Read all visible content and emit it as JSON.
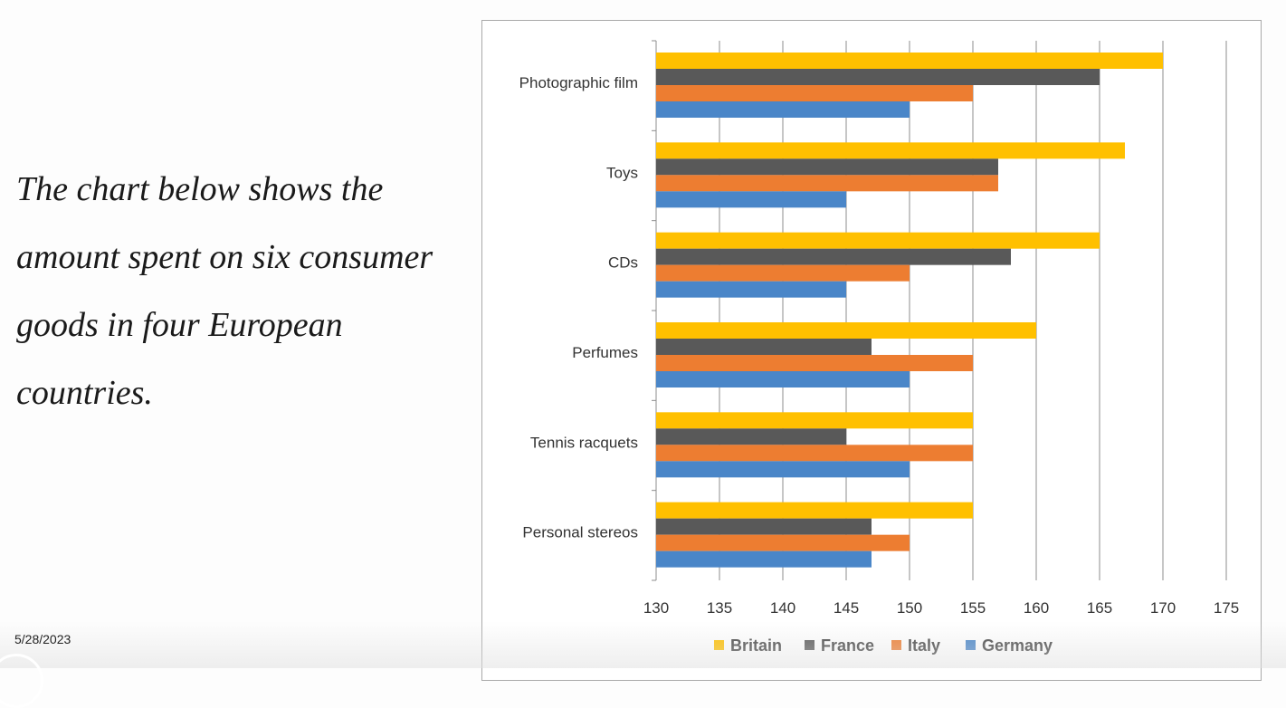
{
  "slide": {
    "intro_text": "The chart below shows the amount spent on six consumer goods in four European countries.",
    "date": "5/28/2023"
  },
  "chart_data": {
    "type": "bar",
    "orientation": "horizontal",
    "title": "",
    "xlabel": "",
    "ylabel": "",
    "categories": [
      "Photographic film",
      "Toys",
      "CDs",
      "Perfumes",
      "Tennis racquets",
      "Personal stereos"
    ],
    "series": [
      {
        "name": "Britain",
        "color": "#ffc000",
        "values": [
          170,
          167,
          165,
          160,
          155,
          155
        ]
      },
      {
        "name": "France",
        "color": "#595959",
        "values": [
          165,
          157,
          158,
          147,
          145,
          147
        ]
      },
      {
        "name": "Italy",
        "color": "#ed7d31",
        "values": [
          155,
          157,
          150,
          155,
          155,
          150
        ]
      },
      {
        "name": "Germany",
        "color": "#4a86c8",
        "values": [
          150,
          145,
          145,
          150,
          150,
          147
        ]
      }
    ],
    "xlim": [
      130,
      175
    ],
    "xticks": [
      130,
      135,
      140,
      145,
      150,
      155,
      160,
      165,
      170,
      175
    ],
    "grid": "vertical",
    "legend_position": "bottom"
  }
}
